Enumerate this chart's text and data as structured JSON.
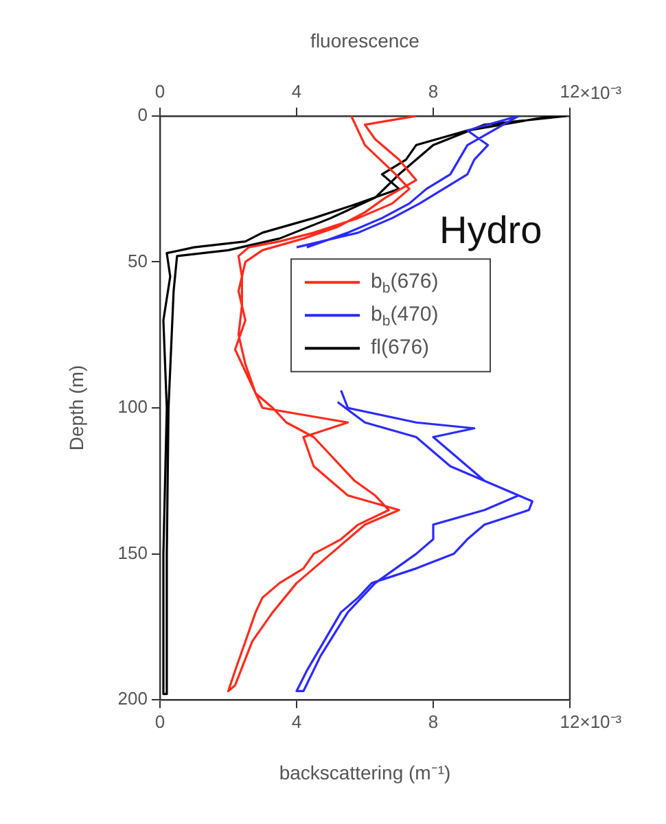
{
  "chart_data": {
    "type": "line",
    "xlabel": "backscattering (m⁻¹)",
    "x2label": "fluorescence",
    "ylabel": "Depth (m)",
    "xlim": [
      0,
      12
    ],
    "xticks": [
      0,
      4,
      8,
      12
    ],
    "x2lim": [
      0,
      12
    ],
    "x2ticks": [
      0,
      4,
      8,
      12
    ],
    "ylim": [
      200,
      0
    ],
    "yticks": [
      0,
      50,
      100,
      150,
      200
    ],
    "grid": false,
    "legend": "top",
    "marker": "none",
    "line_style": "solid",
    "annotations": [
      "Hydro",
      "×10⁻³",
      "×10⁻³"
    ],
    "series": [
      {
        "name": "b$_{b}$(676)",
        "color": "#ff2a1a",
        "x": [
          5.6,
          6.0,
          6.9,
          7.3,
          6.8,
          5.8,
          4.5,
          3.5,
          2.6,
          2.3,
          2.4,
          2.4,
          2.3,
          2.5,
          2.8,
          3.3,
          3.7,
          4.5,
          4.9,
          5.3,
          5.7,
          6.3,
          6.7,
          5.8,
          5.3,
          4.5,
          4.2,
          3.5,
          3.0,
          2.8,
          2.5,
          2.2,
          2.0,
          2.2,
          2.7,
          3.3,
          4.0,
          5.0,
          6.0,
          7.0,
          5.5,
          4.5,
          4.2,
          5.5,
          3.0,
          2.6,
          2.2,
          2.5,
          2.3,
          2.5,
          3.0,
          4.2,
          5.2,
          6.0,
          6.6,
          7.5,
          7.0,
          6.3,
          6.0,
          7.5
        ],
        "values": [
          0,
          10,
          20,
          25,
          30,
          35,
          40,
          43,
          45,
          48,
          55,
          65,
          75,
          85,
          95,
          100,
          105,
          110,
          115,
          120,
          125,
          130,
          135,
          140,
          145,
          150,
          155,
          160,
          165,
          170,
          180,
          190,
          197,
          195,
          180,
          170,
          160,
          150,
          140,
          135,
          130,
          120,
          110,
          105,
          100,
          90,
          80,
          70,
          60,
          50,
          46,
          42,
          38,
          33,
          28,
          22,
          15,
          8,
          3,
          0
        ]
      },
      {
        "name": "b$_{b}$(470)",
        "color": "#2a2aff",
        "x": [
          10.5,
          9.0,
          9.6,
          9.2,
          9.0,
          8.3,
          7.6,
          6.8,
          5.8,
          4.0,
          null,
          5.3,
          5.5,
          7.5,
          9.2,
          8.0,
          8.5,
          9.0,
          9.5,
          10.9,
          10.8,
          9.5,
          9.0,
          8.6,
          7.5,
          6.2,
          5.8,
          5.3,
          4.8,
          4.3,
          4.0,
          4.2,
          4.7,
          5.5,
          6.3,
          7.5,
          8.0,
          8.0,
          9.5,
          10.5,
          8.5,
          7.5,
          6.0,
          5.2,
          null,
          4.3,
          5.5,
          6.5,
          7.3,
          7.8,
          8.5,
          9.0,
          10.5
        ],
        "values": [
          0,
          5,
          10,
          15,
          20,
          25,
          30,
          35,
          40,
          45,
          null,
          94,
          100,
          105,
          107,
          110,
          115,
          120,
          125,
          132,
          135,
          140,
          145,
          150,
          155,
          160,
          165,
          170,
          180,
          190,
          197,
          197,
          185,
          170,
          160,
          150,
          145,
          140,
          135,
          130,
          120,
          110,
          105,
          98,
          null,
          45,
          40,
          35,
          30,
          25,
          20,
          10,
          0
        ]
      },
      {
        "name": "fl(676)",
        "color": "#000000",
        "axis": "x2",
        "x": [
          11.5,
          9.0,
          7.5,
          7.2,
          6.5,
          7.0,
          5.8,
          4.5,
          3.0,
          2.5,
          1.0,
          0.2,
          0.3,
          0.1,
          0.2,
          0.1,
          0.1,
          0.2,
          0.2,
          0.25,
          0.4,
          0.5,
          2.0,
          3.5,
          5.0,
          6.3,
          7.0,
          8.0,
          9.5,
          11.9
        ],
        "values": [
          0,
          5,
          10,
          15,
          20,
          25,
          30,
          35,
          40,
          43,
          45,
          47,
          55,
          70,
          100,
          150,
          198,
          198,
          150,
          100,
          60,
          48,
          46,
          42,
          35,
          28,
          20,
          10,
          3,
          0
        ]
      }
    ]
  }
}
